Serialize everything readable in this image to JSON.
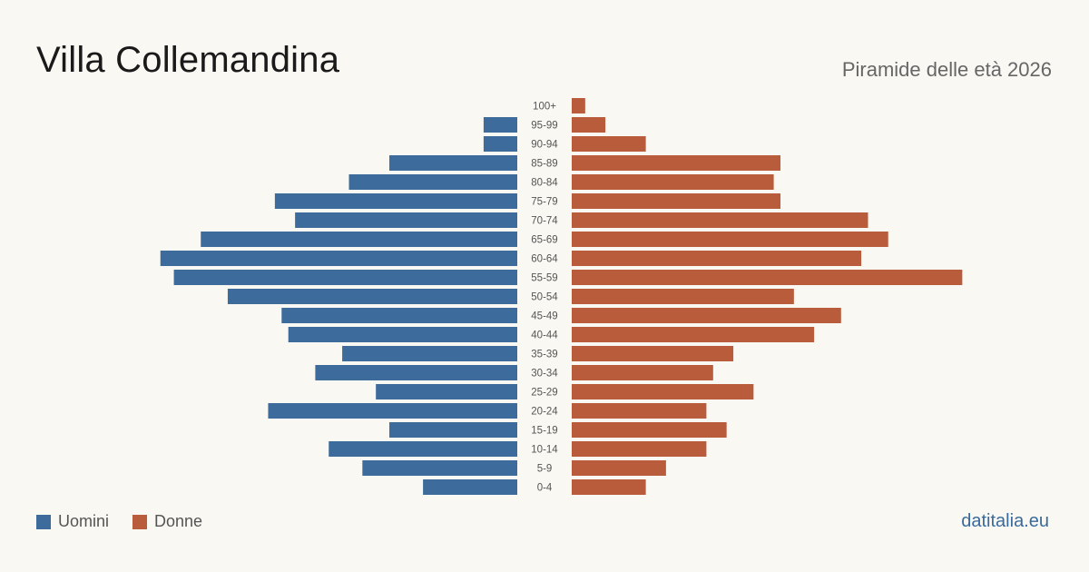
{
  "title": "Villa Collemandina",
  "subtitle": "Piramide delle età 2026",
  "brand": "datitalia.eu",
  "legend": {
    "men": "Uomini",
    "women": "Donne"
  },
  "colors": {
    "men": "#3d6b9b",
    "women": "#b95c3c",
    "background": "#faf8f3"
  },
  "chart_data": {
    "type": "bar",
    "orientation": "horizontal-pyramid",
    "categories": [
      "100+",
      "95-99",
      "90-94",
      "85-89",
      "80-84",
      "75-79",
      "70-74",
      "65-69",
      "60-64",
      "55-59",
      "50-54",
      "45-49",
      "40-44",
      "35-39",
      "30-34",
      "25-29",
      "20-24",
      "15-19",
      "10-14",
      "5-9",
      "0-4"
    ],
    "series": [
      {
        "name": "Uomini",
        "values": [
          0,
          5,
          5,
          19,
          25,
          36,
          33,
          47,
          53,
          51,
          43,
          35,
          34,
          26,
          30,
          21,
          37,
          19,
          28,
          23,
          14
        ]
      },
      {
        "name": "Donne",
        "values": [
          2,
          5,
          11,
          31,
          30,
          31,
          44,
          47,
          43,
          58,
          33,
          40,
          36,
          24,
          21,
          27,
          20,
          23,
          20,
          14,
          11
        ]
      }
    ],
    "xlabel": "",
    "ylabel": "",
    "grid": false,
    "legend_position": "bottom-left"
  }
}
